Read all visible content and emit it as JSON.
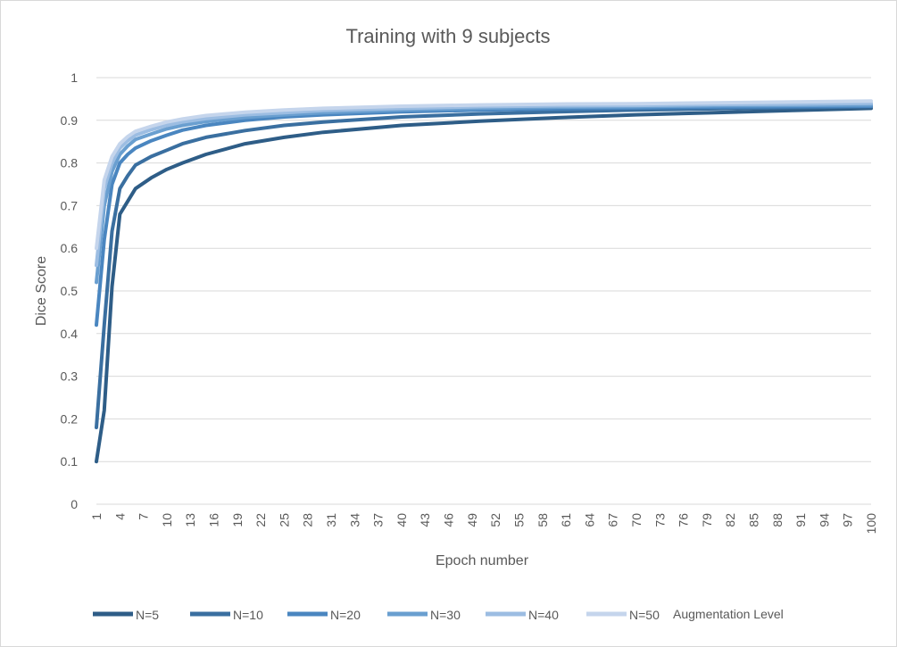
{
  "chart_data": {
    "type": "line",
    "title": "Training with 9 subjects",
    "xlabel": "Epoch number",
    "ylabel": "Dice Score",
    "xlim": [
      1,
      100
    ],
    "ylim": [
      0,
      1
    ],
    "yticks": [
      "0",
      "0.1",
      "0.2",
      "0.3",
      "0.4",
      "0.5",
      "0.6",
      "0.7",
      "0.8",
      "0.9",
      "1"
    ],
    "xtick_labels": [
      "1",
      "4",
      "7",
      "10",
      "13",
      "16",
      "19",
      "22",
      "25",
      "28",
      "31",
      "34",
      "37",
      "40",
      "43",
      "46",
      "49",
      "52",
      "55",
      "58",
      "61",
      "64",
      "67",
      "70",
      "73",
      "76",
      "79",
      "82",
      "85",
      "88",
      "91",
      "94",
      "97",
      "100"
    ],
    "grid": true,
    "legend_position": "bottom",
    "legend_title": "Augmentation Level",
    "series": [
      {
        "name": "N=5",
        "color": "#2e5d87",
        "points": [
          [
            1,
            0.1
          ],
          [
            2,
            0.22
          ],
          [
            3,
            0.51
          ],
          [
            4,
            0.68
          ],
          [
            5,
            0.71
          ],
          [
            6,
            0.74
          ],
          [
            8,
            0.765
          ],
          [
            10,
            0.785
          ],
          [
            12,
            0.8
          ],
          [
            15,
            0.82
          ],
          [
            20,
            0.845
          ],
          [
            25,
            0.86
          ],
          [
            30,
            0.872
          ],
          [
            40,
            0.888
          ],
          [
            50,
            0.898
          ],
          [
            60,
            0.906
          ],
          [
            70,
            0.913
          ],
          [
            80,
            0.918
          ],
          [
            90,
            0.923
          ],
          [
            100,
            0.928
          ]
        ]
      },
      {
        "name": "N=10",
        "color": "#3a6fa0",
        "points": [
          [
            1,
            0.18
          ],
          [
            2,
            0.42
          ],
          [
            3,
            0.64
          ],
          [
            4,
            0.74
          ],
          [
            5,
            0.77
          ],
          [
            6,
            0.795
          ],
          [
            8,
            0.815
          ],
          [
            10,
            0.83
          ],
          [
            12,
            0.845
          ],
          [
            15,
            0.86
          ],
          [
            20,
            0.876
          ],
          [
            25,
            0.888
          ],
          [
            30,
            0.896
          ],
          [
            40,
            0.908
          ],
          [
            50,
            0.915
          ],
          [
            60,
            0.92
          ],
          [
            70,
            0.924
          ],
          [
            80,
            0.927
          ],
          [
            90,
            0.93
          ],
          [
            100,
            0.932
          ]
        ]
      },
      {
        "name": "N=20",
        "color": "#4a86c0",
        "points": [
          [
            1,
            0.42
          ],
          [
            2,
            0.62
          ],
          [
            3,
            0.75
          ],
          [
            4,
            0.8
          ],
          [
            5,
            0.82
          ],
          [
            6,
            0.835
          ],
          [
            8,
            0.852
          ],
          [
            10,
            0.865
          ],
          [
            12,
            0.877
          ],
          [
            15,
            0.888
          ],
          [
            20,
            0.9
          ],
          [
            25,
            0.908
          ],
          [
            30,
            0.913
          ],
          [
            40,
            0.92
          ],
          [
            50,
            0.924
          ],
          [
            60,
            0.927
          ],
          [
            70,
            0.929
          ],
          [
            80,
            0.931
          ],
          [
            90,
            0.932
          ],
          [
            100,
            0.933
          ]
        ]
      },
      {
        "name": "N=30",
        "color": "#6a9fd0",
        "points": [
          [
            1,
            0.52
          ],
          [
            2,
            0.7
          ],
          [
            3,
            0.78
          ],
          [
            4,
            0.82
          ],
          [
            5,
            0.84
          ],
          [
            6,
            0.855
          ],
          [
            8,
            0.868
          ],
          [
            10,
            0.88
          ],
          [
            12,
            0.888
          ],
          [
            15,
            0.897
          ],
          [
            20,
            0.907
          ],
          [
            25,
            0.913
          ],
          [
            30,
            0.918
          ],
          [
            40,
            0.924
          ],
          [
            50,
            0.928
          ],
          [
            60,
            0.931
          ],
          [
            70,
            0.932
          ],
          [
            80,
            0.934
          ],
          [
            90,
            0.935
          ],
          [
            100,
            0.936
          ]
        ]
      },
      {
        "name": "N=40",
        "color": "#9cbde2",
        "points": [
          [
            1,
            0.56
          ],
          [
            2,
            0.74
          ],
          [
            3,
            0.8
          ],
          [
            4,
            0.835
          ],
          [
            5,
            0.852
          ],
          [
            6,
            0.865
          ],
          [
            8,
            0.878
          ],
          [
            10,
            0.888
          ],
          [
            12,
            0.896
          ],
          [
            15,
            0.904
          ],
          [
            20,
            0.913
          ],
          [
            25,
            0.918
          ],
          [
            30,
            0.923
          ],
          [
            40,
            0.928
          ],
          [
            50,
            0.932
          ],
          [
            60,
            0.934
          ],
          [
            70,
            0.935
          ],
          [
            80,
            0.937
          ],
          [
            90,
            0.938
          ],
          [
            100,
            0.94
          ]
        ]
      },
      {
        "name": "N=50",
        "color": "#c5d5ec",
        "points": [
          [
            1,
            0.6
          ],
          [
            2,
            0.76
          ],
          [
            3,
            0.815
          ],
          [
            4,
            0.845
          ],
          [
            5,
            0.862
          ],
          [
            6,
            0.874
          ],
          [
            8,
            0.886
          ],
          [
            10,
            0.896
          ],
          [
            12,
            0.903
          ],
          [
            15,
            0.911
          ],
          [
            20,
            0.919
          ],
          [
            25,
            0.924
          ],
          [
            30,
            0.928
          ],
          [
            40,
            0.933
          ],
          [
            50,
            0.936
          ],
          [
            60,
            0.938
          ],
          [
            70,
            0.939
          ],
          [
            80,
            0.941
          ],
          [
            90,
            0.943
          ],
          [
            100,
            0.945
          ]
        ]
      }
    ]
  }
}
